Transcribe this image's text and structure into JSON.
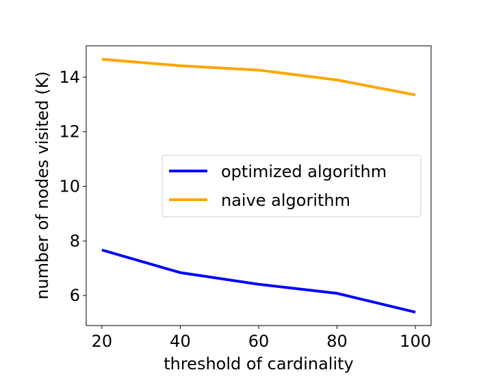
{
  "chart_data": {
    "type": "line",
    "xlabel": "threshold of cardinality",
    "ylabel": "number of nodes visited (K)",
    "x": [
      20,
      40,
      60,
      80,
      100
    ],
    "xticks": [
      20,
      40,
      60,
      80,
      100
    ],
    "yticks": [
      6,
      8,
      10,
      12,
      14
    ],
    "xlim": [
      16,
      104
    ],
    "ylim": [
      4.9,
      15.15
    ],
    "grid": false,
    "legend_position": "center-right",
    "series": [
      {
        "name": "optimized algorithm",
        "color": "#0000ff",
        "values": [
          7.67,
          6.84,
          6.41,
          6.08,
          5.39
        ]
      },
      {
        "name": "naive algorithm",
        "color": "#ffa500",
        "values": [
          14.66,
          14.42,
          14.26,
          13.9,
          13.35
        ]
      }
    ]
  }
}
